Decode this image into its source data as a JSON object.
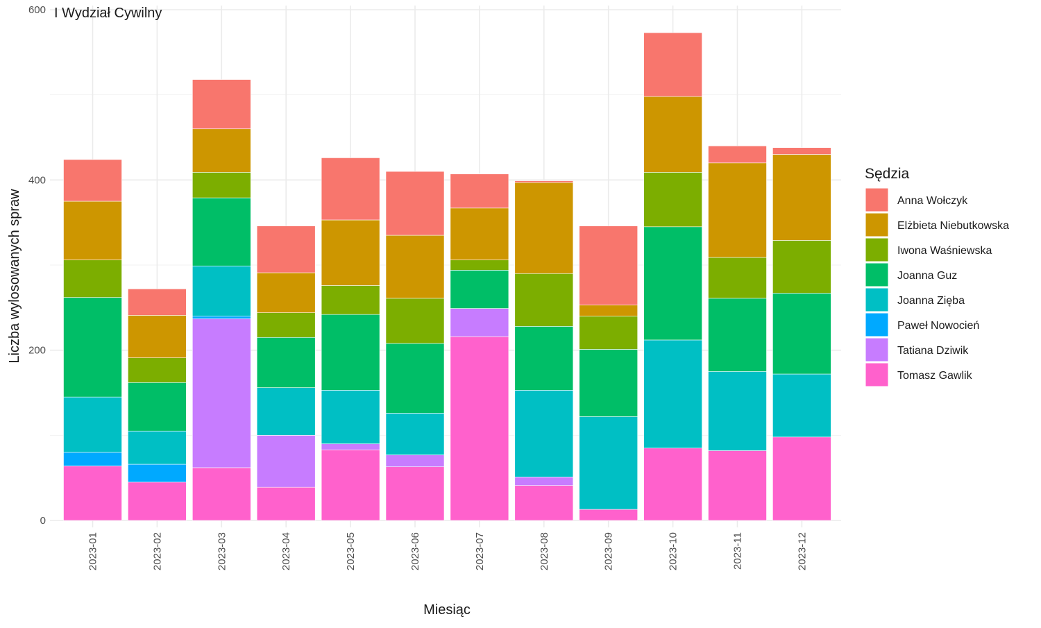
{
  "facet": {
    "title": "I Wydział Cywilny"
  },
  "chart_data": {
    "type": "bar",
    "stacked": true,
    "title": "",
    "xlabel": "Miesiąc",
    "ylabel": "Liczba wylosowanych spraw",
    "ylim": [
      0,
      600
    ],
    "yticks": [
      0,
      200,
      400,
      600
    ],
    "grid": true,
    "legend_position": "right",
    "legend_title": "Sędzia",
    "categories": [
      "2023-01",
      "2023-02",
      "2023-03",
      "2023-04",
      "2023-05",
      "2023-06",
      "2023-07",
      "2023-08",
      "2023-09",
      "2023-10",
      "2023-11",
      "2023-12"
    ],
    "series": [
      {
        "name": "Anna Wołczyk",
        "color": "#F8766D",
        "values": [
          49,
          31,
          58,
          55,
          73,
          75,
          40,
          2,
          93,
          75,
          20,
          8
        ]
      },
      {
        "name": "Elżbieta Niebutkowska",
        "color": "#CD9600",
        "values": [
          69,
          50,
          51,
          47,
          77,
          74,
          61,
          107,
          13,
          89,
          111,
          101
        ]
      },
      {
        "name": "Iwona Waśniewska",
        "color": "#7CAE00",
        "values": [
          44,
          29,
          30,
          29,
          34,
          53,
          12,
          62,
          39,
          64,
          48,
          62
        ]
      },
      {
        "name": "Joanna Guz",
        "color": "#00BE67",
        "values": [
          117,
          57,
          80,
          59,
          89,
          82,
          45,
          75,
          79,
          133,
          86,
          95
        ]
      },
      {
        "name": "Joanna Zięba",
        "color": "#00BFC4",
        "values": [
          65,
          39,
          59,
          56,
          63,
          49,
          0,
          102,
          109,
          127,
          93,
          74
        ]
      },
      {
        "name": "Paweł Nowocień",
        "color": "#00A9FF",
        "values": [
          16,
          21,
          3,
          0,
          0,
          0,
          0,
          0,
          0,
          0,
          0,
          0
        ]
      },
      {
        "name": "Tatiana Dziwik",
        "color": "#C77CFF",
        "values": [
          0,
          0,
          175,
          61,
          7,
          14,
          33,
          10,
          0,
          0,
          0,
          0
        ]
      },
      {
        "name": "Tomasz Gawlik",
        "color": "#FF61CC",
        "values": [
          64,
          45,
          62,
          39,
          83,
          63,
          216,
          41,
          13,
          85,
          82,
          98
        ]
      }
    ]
  }
}
